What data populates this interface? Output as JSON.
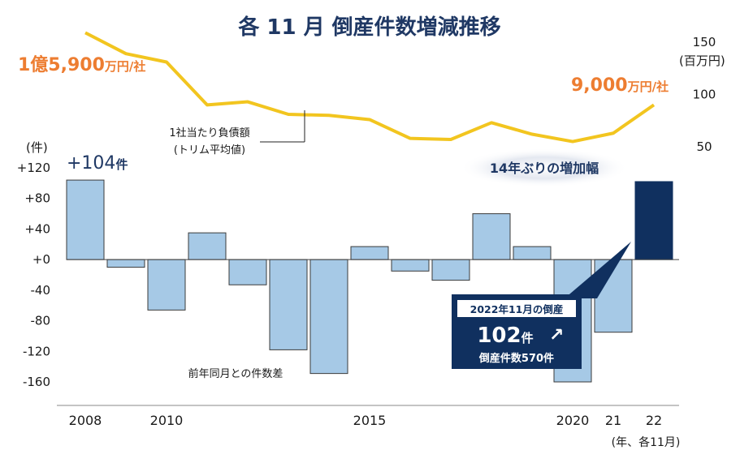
{
  "title": "各 11 月 倒産件数増減推移",
  "colors": {
    "bar_light": "#a6c9e6",
    "bar_highlight": "#10305f",
    "line": "#f2c51f",
    "orange": "#ed7d31",
    "navy": "#1f3864"
  },
  "chart_data": [
    {
      "type": "bar",
      "name": "前年同月との件数差",
      "ylabel": "(件)",
      "ylim": [
        -160,
        120
      ],
      "y_ticks": [
        "+120",
        "+80",
        "+40",
        "+0",
        "-40",
        "-80",
        "-120",
        "-160"
      ],
      "categories": [
        "2008",
        "2009",
        "2010",
        "2011",
        "2012",
        "2013",
        "2014",
        "2015",
        "2016",
        "2017",
        "2018",
        "2019",
        "2020",
        "2021",
        "2022"
      ],
      "values": [
        104,
        -10,
        -66,
        35,
        -33,
        -118,
        -149,
        17,
        -15,
        -27,
        60,
        17,
        -160,
        -95,
        102
      ],
      "highlight_index": 14,
      "annotation": "前年同月との件数差",
      "first_label": {
        "prefix": "+104",
        "unit": "件"
      }
    },
    {
      "type": "line",
      "name": "1社当たり負債額(トリム平均値)",
      "ylabel": "(百万円)",
      "ylim": [
        50,
        150
      ],
      "y_ticks": [
        "150",
        "100",
        "50"
      ],
      "categories": [
        "2008",
        "2009",
        "2010",
        "2011",
        "2012",
        "2013",
        "2014",
        "2015",
        "2016",
        "2017",
        "2018",
        "2019",
        "2020",
        "2021",
        "2022"
      ],
      "values": [
        159,
        139,
        131,
        90,
        93,
        81,
        80,
        76,
        58,
        57,
        73,
        62,
        55,
        63,
        90
      ],
      "annotation_line1": "1社当たり負債額",
      "annotation_line2": "(トリム平均値)",
      "start_label": {
        "main": "1億5,900",
        "unit": "万円/社"
      },
      "end_label": {
        "main": "9,000",
        "unit": "万円/社"
      }
    }
  ],
  "x_axis": {
    "labels": [
      "2008",
      "2010",
      "2015",
      "2020",
      "21",
      "22"
    ],
    "label_indices": [
      0,
      2,
      7,
      12,
      13,
      14
    ],
    "unit": "(年、各11月)"
  },
  "callouts": {
    "increase": "14年ぶりの増加幅",
    "box_header": "2022年11月の倒産",
    "box_main": "102",
    "box_main_unit": "件",
    "box_arrow": "↗",
    "box_footer": "倒産件数570件"
  }
}
